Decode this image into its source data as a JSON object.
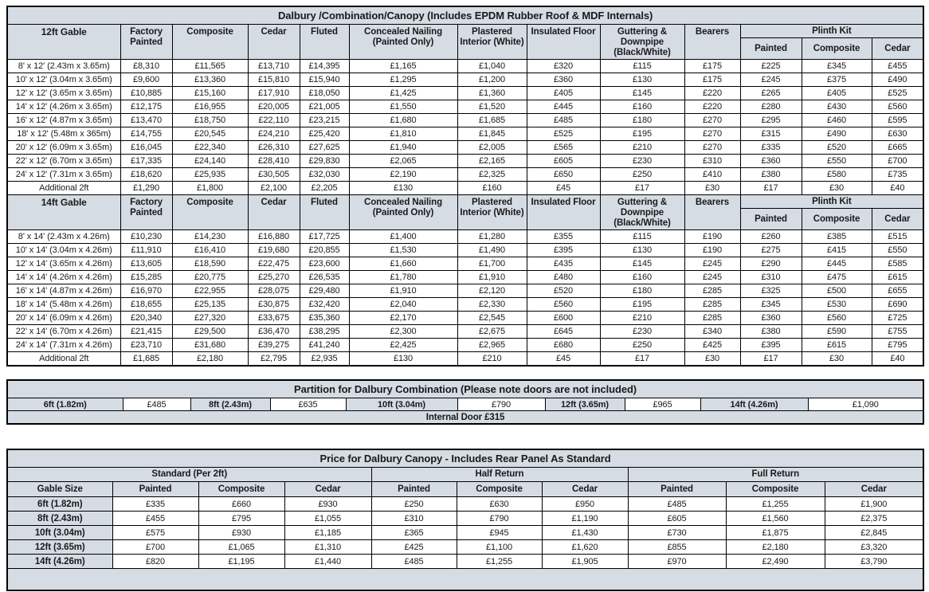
{
  "colors": {
    "header_fill": "#d6dce4",
    "border": "#000000",
    "page_bg": "#ffffff"
  },
  "main_table": {
    "title": "Dalbury /Combination/Canopy (Includes EPDM Rubber Roof & MDF Internals)",
    "column_headers": [
      "Factory Painted",
      "Composite",
      "Cedar",
      "Fluted",
      "Concealed Nailing (Painted Only)",
      "Plastered Interior (White)",
      "Insulated Floor",
      "Guttering & Downpipe (Black/White)",
      "Bearers"
    ],
    "plinth_kit": {
      "label": "Plinth Kit",
      "sub": [
        "Painted",
        "Composite",
        "Cedar"
      ]
    },
    "sections": [
      {
        "label": "12ft Gable",
        "rows": [
          {
            "size": "8' x 12' (2.43m x 3.65m)",
            "values": [
              "£8,310",
              "£11,565",
              "£13,710",
              "£14,395",
              "£1,165",
              "£1,040",
              "£320",
              "£115",
              "£175",
              "£225",
              "£345",
              "£455"
            ]
          },
          {
            "size": "10' x 12' (3.04m x 3.65m)",
            "values": [
              "£9,600",
              "£13,360",
              "£15,810",
              "£15,940",
              "£1,295",
              "£1,200",
              "£360",
              "£130",
              "£175",
              "£245",
              "£375",
              "£490"
            ]
          },
          {
            "size": "12' x 12' (3.65m x 3.65m)",
            "values": [
              "£10,885",
              "£15,160",
              "£17,910",
              "£18,050",
              "£1,425",
              "£1,360",
              "£405",
              "£145",
              "£220",
              "£265",
              "£405",
              "£525"
            ]
          },
          {
            "size": "14' x 12' (4.26m x 3.65m)",
            "values": [
              "£12,175",
              "£16,955",
              "£20,005",
              "£21,005",
              "£1,550",
              "£1,520",
              "£445",
              "£160",
              "£220",
              "£280",
              "£430",
              "£560"
            ]
          },
          {
            "size": "16' x 12' (4.87m x 3.65m)",
            "values": [
              "£13,470",
              "£18,750",
              "£22,110",
              "£23,215",
              "£1,680",
              "£1,685",
              "£485",
              "£180",
              "£270",
              "£295",
              "£460",
              "£595"
            ]
          },
          {
            "size": "18' x 12' (5.48m x 365m)",
            "values": [
              "£14,755",
              "£20,545",
              "£24,210",
              "£25,420",
              "£1,810",
              "£1,845",
              "£525",
              "£195",
              "£270",
              "£315",
              "£490",
              "£630"
            ]
          },
          {
            "size": "20' x 12' (6.09m x 3.65m)",
            "values": [
              "£16,045",
              "£22,340",
              "£26,310",
              "£27,625",
              "£1,940",
              "£2,005",
              "£565",
              "£210",
              "£270",
              "£335",
              "£520",
              "£665"
            ]
          },
          {
            "size": "22' x 12' (6.70m x 3.65m)",
            "values": [
              "£17,335",
              "£24,140",
              "£28,410",
              "£29,830",
              "£2,065",
              "£2,165",
              "£605",
              "£230",
              "£310",
              "£360",
              "£550",
              "£700"
            ]
          },
          {
            "size": "24' x 12' (7.31m x 3.65m)",
            "values": [
              "£18,620",
              "£25,935",
              "£30,505",
              "£32,030",
              "£2,190",
              "£2,325",
              "£650",
              "£250",
              "£410",
              "£380",
              "£580",
              "£735"
            ]
          },
          {
            "size": "Additional 2ft",
            "values": [
              "£1,290",
              "£1,800",
              "£2,100",
              "£2,205",
              "£130",
              "£160",
              "£45",
              "£17",
              "£30",
              "£17",
              "£30",
              "£40"
            ]
          }
        ]
      },
      {
        "label": "14ft Gable",
        "rows": [
          {
            "size": "8' x 14' (2.43m x 4.26m)",
            "values": [
              "£10,230",
              "£14,230",
              "£16,880",
              "£17,725",
              "£1,400",
              "£1,280",
              "£355",
              "£115",
              "£190",
              "£260",
              "£385",
              "£515"
            ]
          },
          {
            "size": "10' x 14' (3.04m x 4.26m)",
            "values": [
              "£11,910",
              "£16,410",
              "£19,680",
              "£20,855",
              "£1,530",
              "£1,490",
              "£395",
              "£130",
              "£190",
              "£275",
              "£415",
              "£550"
            ]
          },
          {
            "size": "12' x 14' (3.65m x 4.26m)",
            "values": [
              "£13,605",
              "£18,590",
              "£22,475",
              "£23,600",
              "£1,660",
              "£1,700",
              "£435",
              "£145",
              "£245",
              "£290",
              "£445",
              "£585"
            ]
          },
          {
            "size": "14' x 14' (4.26m x 4.26m)",
            "values": [
              "£15,285",
              "£20,775",
              "£25,270",
              "£26,535",
              "£1,780",
              "£1,910",
              "£480",
              "£160",
              "£245",
              "£310",
              "£475",
              "£615"
            ]
          },
          {
            "size": "16' x 14' (4.87m x 4.26m)",
            "values": [
              "£16,970",
              "£22,955",
              "£28,075",
              "£29,480",
              "£1,910",
              "£2,120",
              "£520",
              "£180",
              "£285",
              "£325",
              "£500",
              "£655"
            ]
          },
          {
            "size": "18' x 14' (5.48m x 4.26m)",
            "values": [
              "£18,655",
              "£25,135",
              "£30,875",
              "£32,420",
              "£2,040",
              "£2,330",
              "£560",
              "£195",
              "£285",
              "£345",
              "£530",
              "£690"
            ]
          },
          {
            "size": "20' x 14' (6.09m x 4.26m)",
            "values": [
              "£20,340",
              "£27,320",
              "£33,675",
              "£35,360",
              "£2,170",
              "£2,545",
              "£600",
              "£210",
              "£285",
              "£360",
              "£560",
              "£725"
            ]
          },
          {
            "size": "22' x 14' (6.70m x 4.26m)",
            "values": [
              "£21,415",
              "£29,500",
              "£36,470",
              "£38,295",
              "£2,300",
              "£2,675",
              "£645",
              "£230",
              "£340",
              "£380",
              "£590",
              "£755"
            ]
          },
          {
            "size": "24' x 14' (7.31m x 4.26m)",
            "values": [
              "£23,710",
              "£31,680",
              "£39,275",
              "£41,240",
              "£2,425",
              "£2,965",
              "£680",
              "£250",
              "£425",
              "£395",
              "£615",
              "£795"
            ]
          },
          {
            "size": "Additional 2ft",
            "values": [
              "£1,685",
              "£2,180",
              "£2,795",
              "£2,935",
              "£130",
              "£210",
              "£45",
              "£17",
              "£30",
              "£17",
              "£30",
              "£40"
            ]
          }
        ]
      }
    ]
  },
  "partition_table": {
    "title": "Partition for Dalbury Combination (Please note doors are not included)",
    "pairs": [
      {
        "label": "6ft (1.82m)",
        "price": "£485"
      },
      {
        "label": "8ft (2.43m)",
        "price": "£635"
      },
      {
        "label": "10ft (3.04m)",
        "price": "£790"
      },
      {
        "label": "12ft (3.65m)",
        "price": "£965"
      },
      {
        "label": "14ft (4.26m)",
        "price": "£1,090"
      }
    ],
    "footer": "Internal Door £315"
  },
  "canopy_table": {
    "title": "Price for Dalbury Canopy - Includes Rear Panel As Standard",
    "groups": [
      "Standard (Per 2ft)",
      "Half Return",
      "Full Return"
    ],
    "corner_header": "Gable Size",
    "sub_headers": [
      "Painted",
      "Composite",
      "Cedar"
    ],
    "rows": [
      {
        "size": "6ft (1.82m)",
        "values": [
          "£335",
          "£660",
          "£930",
          "£250",
          "£630",
          "£950",
          "£485",
          "£1,255",
          "£1,900"
        ]
      },
      {
        "size": "8ft (2.43m)",
        "values": [
          "£455",
          "£795",
          "£1,055",
          "£310",
          "£790",
          "£1,190",
          "£605",
          "£1,560",
          "£2,375"
        ]
      },
      {
        "size": "10ft (3.04m)",
        "values": [
          "£575",
          "£930",
          "£1,185",
          "£365",
          "£945",
          "£1,430",
          "£730",
          "£1,875",
          "£2,845"
        ]
      },
      {
        "size": "12ft (3.65m)",
        "values": [
          "£700",
          "£1,065",
          "£1,310",
          "£425",
          "£1,100",
          "£1,620",
          "£855",
          "£2,180",
          "£3,320"
        ]
      },
      {
        "size": "14ft (4.26m)",
        "values": [
          "£820",
          "£1,195",
          "£1,440",
          "£485",
          "£1,255",
          "£1,905",
          "£970",
          "£2,490",
          "£3,790"
        ]
      }
    ]
  }
}
